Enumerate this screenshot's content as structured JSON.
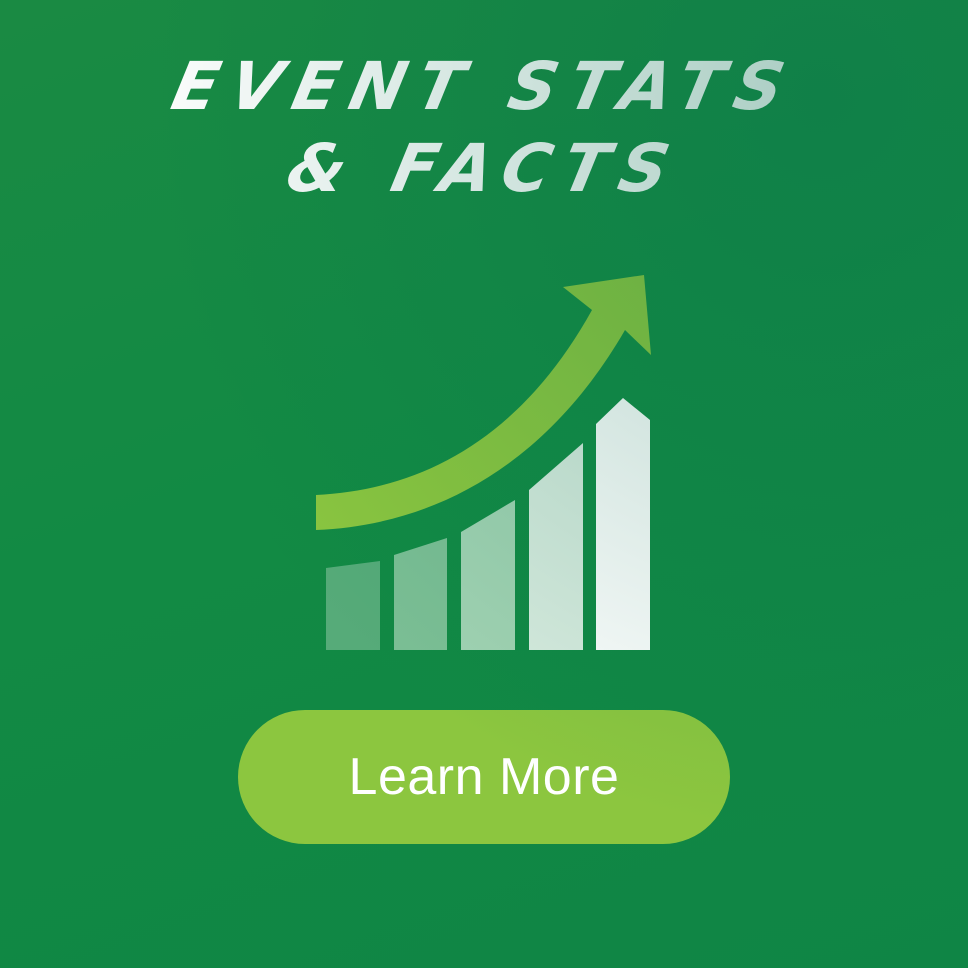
{
  "title": {
    "line1": "EVENT STATS",
    "line2": "& FACTS"
  },
  "icon": {
    "name": "growth-chart-icon",
    "bars": 5,
    "arrow_color": "#8cc63f",
    "bar_colors": [
      "#56ab79",
      "#7cbf95",
      "#a2d3b3",
      "#d9ece0",
      "#ffffff"
    ]
  },
  "cta": {
    "label": "Learn More",
    "color": "#8cc63f"
  },
  "colors": {
    "background": "#128a44",
    "text": "#ffffff"
  }
}
